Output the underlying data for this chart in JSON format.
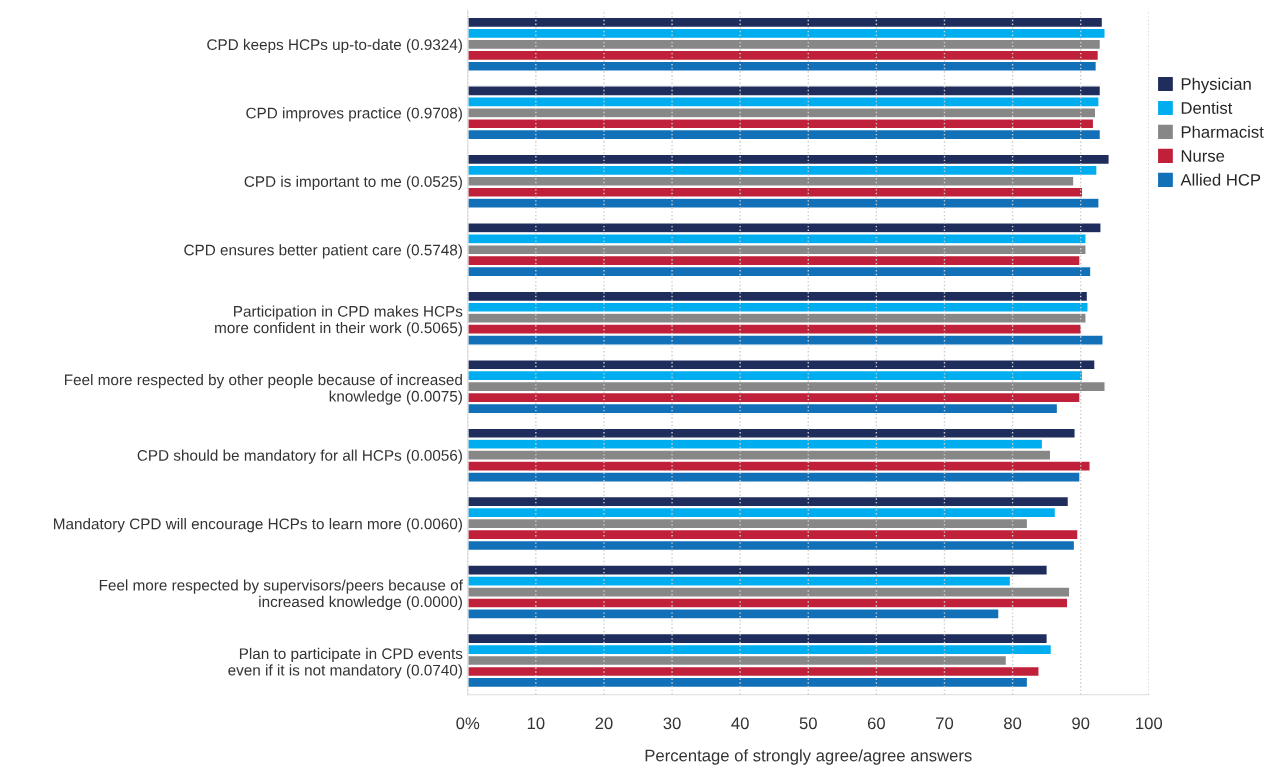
{
  "chart_data": {
    "type": "bar",
    "orientation": "horizontal",
    "xlabel": "Percentage of strongly agree/agree answers",
    "categories": [
      "CPD keeps HCPs up-to-date (0.9324)",
      "CPD improves practice (0.9708)",
      "CPD is important to me (0.0525)",
      "CPD ensures better patient care (0.5748)",
      "Participation in CPD makes HCPs\nmore confident in their work (0.5065)",
      "Feel more respected by other people because of increased\nknowledge (0.0075)",
      "CPD should be mandatory for all HCPs (0.0056)",
      "Mandatory CPD will encourage HCPs to learn more (0.0060)",
      "Feel more respected by supervisors/peers because of\nincreased knowledge (0.0000)",
      "Plan to participate in CPD events\neven if it is not mandatory (0.0740)"
    ],
    "series": [
      {
        "name": "Physician",
        "color": "#1f2d5c",
        "values": [
          93.2,
          92.9,
          94.2,
          93.0,
          91.0,
          92.1,
          89.2,
          88.2,
          85.1,
          85.1
        ]
      },
      {
        "name": "Dentist",
        "color": "#00aeef",
        "values": [
          93.6,
          92.7,
          92.4,
          90.8,
          91.1,
          90.3,
          84.4,
          86.3,
          79.7,
          85.7
        ]
      },
      {
        "name": "Pharmacist",
        "color": "#878787",
        "values": [
          92.9,
          92.2,
          89.0,
          90.8,
          90.8,
          93.6,
          85.6,
          82.2,
          88.4,
          79.1
        ]
      },
      {
        "name": "Nurse",
        "color": "#c0203a",
        "values": [
          92.6,
          91.9,
          90.3,
          89.9,
          90.1,
          89.9,
          91.4,
          89.6,
          88.1,
          83.9
        ]
      },
      {
        "name": "Allied HCP",
        "color": "#1170b8",
        "values": [
          92.3,
          92.9,
          92.7,
          91.5,
          93.3,
          86.6,
          89.9,
          89.1,
          78.0,
          82.2
        ]
      }
    ],
    "xlim": [
      0,
      100
    ],
    "xticks": [
      {
        "value": 0,
        "label": "0%"
      },
      10,
      20,
      30,
      40,
      50,
      60,
      70,
      80,
      90,
      100
    ],
    "grid": "x",
    "legend": "right"
  }
}
